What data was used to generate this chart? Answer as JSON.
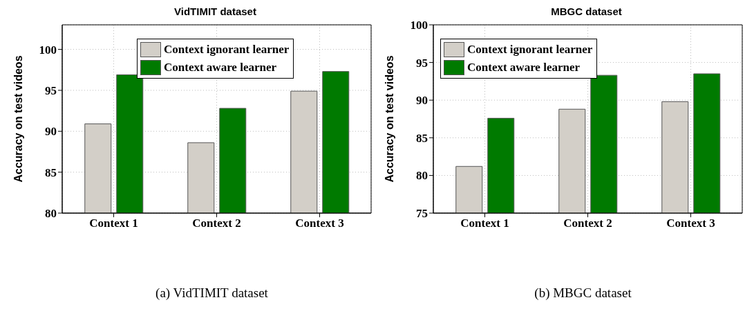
{
  "chart_data": [
    {
      "type": "bar",
      "title": "VidTIMIT dataset",
      "ylabel": "Accuracy on test videos",
      "categories": [
        "Context 1",
        "Context 2",
        "Context 3"
      ],
      "series": [
        {
          "name": "Context ignorant learner",
          "color": "#d3cfc8",
          "values": [
            90.9,
            88.6,
            94.9
          ]
        },
        {
          "name": "Context aware learner",
          "color": "#007a00",
          "values": [
            96.9,
            92.8,
            97.3
          ]
        }
      ],
      "ylim": [
        80,
        103
      ],
      "yticks": [
        80,
        85,
        90,
        95,
        100
      ],
      "grid": true,
      "legend": "top",
      "annotations": [
        "(a)  VidTIMIT dataset"
      ]
    },
    {
      "type": "bar",
      "title": "MBGC dataset",
      "ylabel": "Accuracy on test videos",
      "categories": [
        "Context 1",
        "Context 2",
        "Context 3"
      ],
      "series": [
        {
          "name": "Context ignorant learner",
          "color": "#d3cfc8",
          "values": [
            81.2,
            88.8,
            89.8
          ]
        },
        {
          "name": "Context aware learner",
          "color": "#007a00",
          "values": [
            87.6,
            93.3,
            93.5
          ]
        }
      ],
      "ylim": [
        75,
        100
      ],
      "yticks": [
        75,
        80,
        85,
        90,
        95,
        100
      ],
      "grid": true,
      "legend": "top left",
      "annotations": [
        "(b)  MBGC dataset"
      ]
    }
  ]
}
